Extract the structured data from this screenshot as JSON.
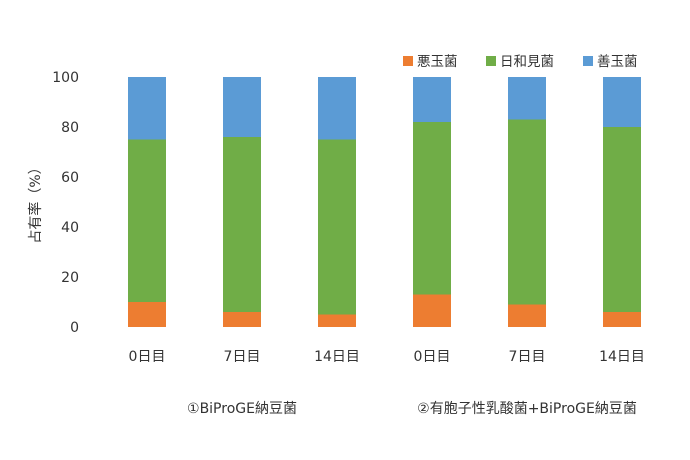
{
  "chart_data": {
    "type": "bar",
    "stacked": true,
    "percent": true,
    "ylabel": "占有率（%）",
    "ylim": [
      0,
      100
    ],
    "yticks": [
      0,
      20,
      40,
      60,
      80,
      100
    ],
    "grid": false,
    "legend_position": "top-right",
    "groups": [
      {
        "label": "①BiProGE納豆菌",
        "categories": [
          "0日目",
          "7日目",
          "14日目"
        ]
      },
      {
        "label": "②有胞子性乳酸菌+BiProGE納豆菌",
        "categories": [
          "0日目",
          "7日目",
          "14日目"
        ]
      }
    ],
    "categories": [
      "0日目",
      "7日目",
      "14日目",
      "0日目",
      "7日目",
      "14日目"
    ],
    "series": [
      {
        "name": "悪玉菌",
        "color": "#ED7D31",
        "values": [
          10,
          6,
          5,
          13,
          9,
          6
        ]
      },
      {
        "name": "日和見菌",
        "color": "#70AD47",
        "values": [
          65,
          70,
          70,
          69,
          74,
          74
        ]
      },
      {
        "name": "善玉菌",
        "color": "#5B9BD5",
        "values": [
          25,
          24,
          25,
          18,
          17,
          20
        ]
      }
    ]
  }
}
